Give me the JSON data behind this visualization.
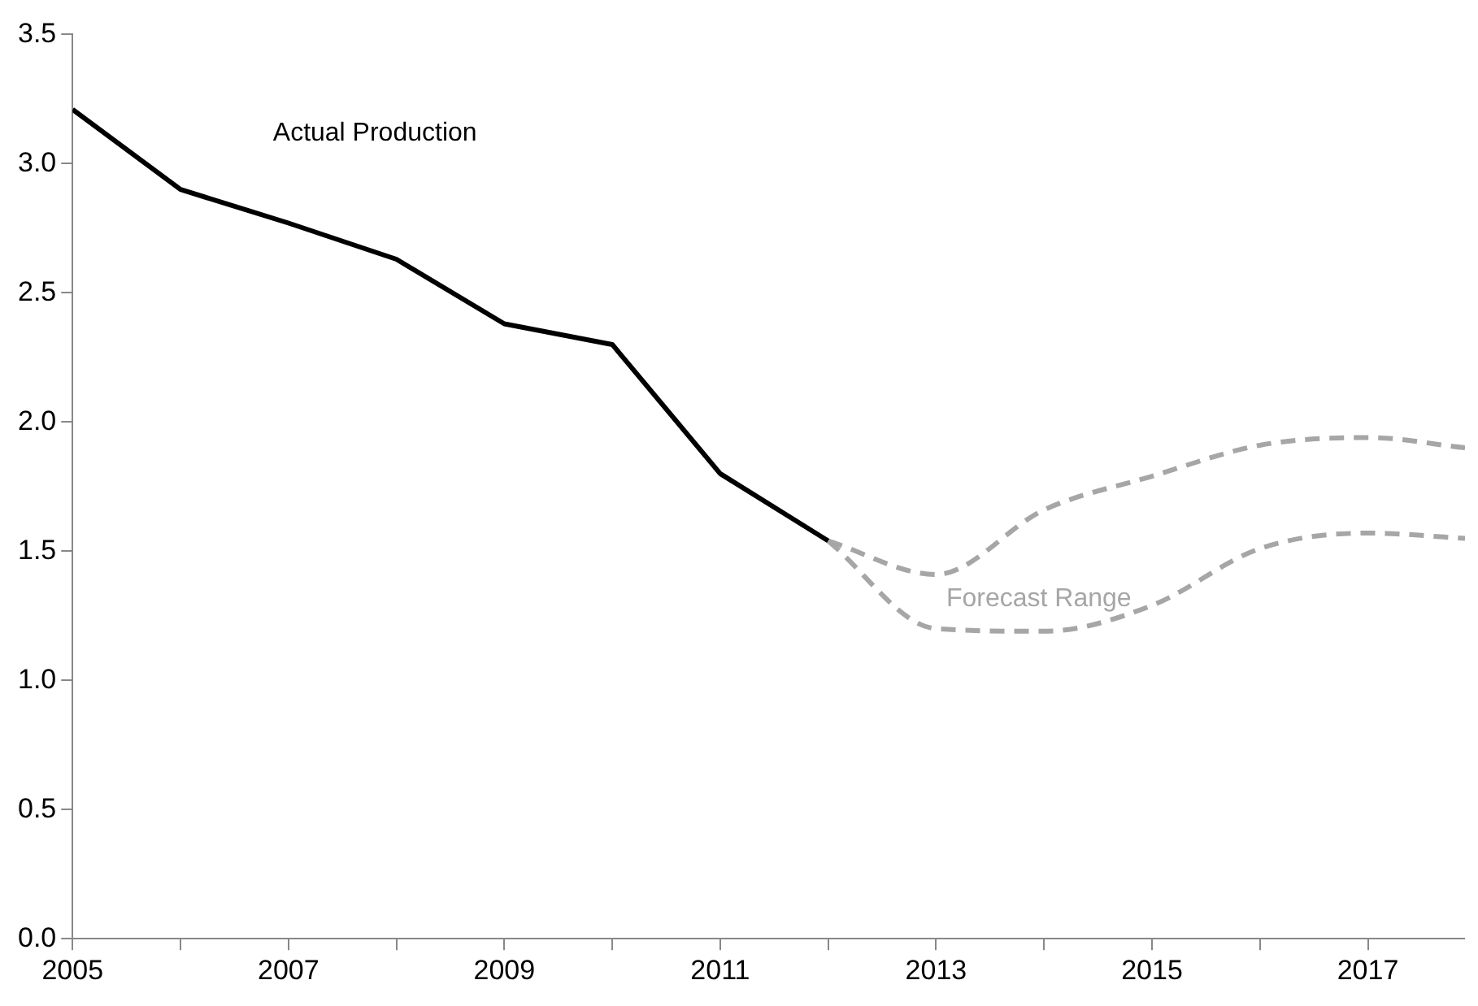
{
  "chart_data": {
    "type": "line",
    "x": [
      2005,
      2006,
      2007,
      2008,
      2009,
      2010,
      2011,
      2012
    ],
    "series": [
      {
        "color": "#000000",
        "line_style": "solid",
        "values": [
          3.21,
          2.9,
          2.77,
          2.63,
          2.38,
          2.3,
          1.8,
          1.54
        ]
      },
      {
        "color": "#a6a6a6",
        "line_style": "dashed",
        "x": [
          2012,
          2013,
          2014,
          2015,
          2016,
          2017,
          2017.9
        ],
        "values": [
          1.54,
          1.41,
          1.66,
          1.79,
          1.91,
          1.94,
          1.9
        ]
      },
      {
        "color": "#a6a6a6",
        "line_style": "dashed",
        "x": [
          2012,
          2013,
          2014,
          2015,
          2016,
          2017,
          2017.9
        ],
        "values": [
          1.54,
          1.2,
          1.19,
          1.29,
          1.51,
          1.57,
          1.55
        ]
      }
    ],
    "xlim": [
      2005,
      2017.9
    ],
    "xticks": [
      2005,
      {
        "value": 2006,
        "label": null
      },
      2007,
      {
        "value": 2008,
        "label": null
      },
      2009,
      {
        "value": 2010,
        "label": null
      },
      2011,
      {
        "value": 2012,
        "label": null
      },
      2013,
      {
        "value": 2014,
        "label": null
      },
      2015,
      {
        "value": 2016,
        "label": null
      },
      2017
    ],
    "ylim": [
      0,
      3.5
    ],
    "yticks": [
      {
        "value": 0,
        "label": "0.0"
      },
      0.5,
      {
        "value": 1,
        "label": "1.0"
      },
      1.5,
      {
        "value": 2,
        "label": "2.0"
      },
      2.5,
      {
        "value": 3,
        "label": "3.0"
      },
      3.5
    ],
    "annotations": [
      "Actual Production",
      "Forecast Range"
    ],
    "grid": false,
    "legend": false,
    "marker": "none"
  }
}
